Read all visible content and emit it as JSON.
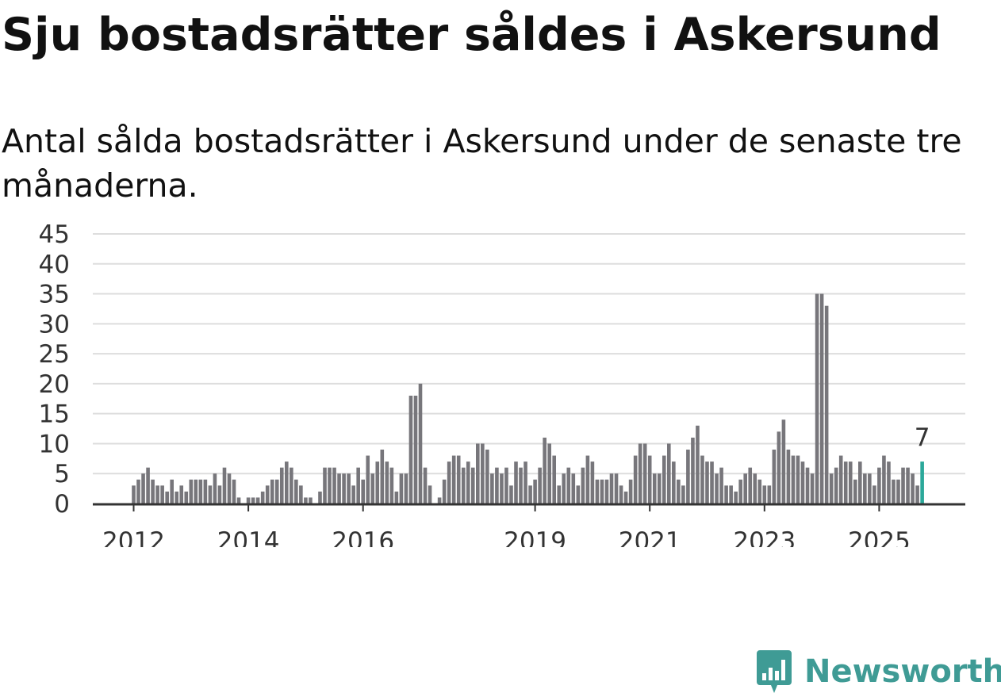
{
  "title": "Sju bostadsrätter såldes i Askersund",
  "subtitle": "Antal sålda bostadsrätter i Askersund under de senaste tre månaderna.",
  "brand": {
    "name": "Newsworthy",
    "color": "#3f9b95"
  },
  "chart_data": {
    "type": "bar",
    "title": "Sju bostadsrätter såldes i Askersund",
    "subtitle": "Antal sålda bostadsrätter i Askersund under de senaste tre månaderna.",
    "xlabel": "",
    "ylabel": "",
    "ylim": [
      0,
      45
    ],
    "yticks": [
      "0",
      "5",
      "10",
      "15",
      "20",
      "25",
      "30",
      "35",
      "40",
      "45"
    ],
    "grid": true,
    "x_tick_labels": [
      "2012",
      "2014",
      "2016",
      "2019",
      "2021",
      "2023",
      "2025"
    ],
    "series_start": "2012-01",
    "series_end": "2025-08",
    "bar_color": "#77767b",
    "highlight_color": "#2ba89a",
    "highlight_label": "7",
    "values": [
      3,
      4,
      5,
      6,
      4,
      3,
      3,
      2,
      4,
      2,
      3,
      2,
      4,
      4,
      4,
      4,
      3,
      5,
      3,
      6,
      5,
      4,
      1,
      0,
      1,
      1,
      1,
      2,
      3,
      4,
      4,
      6,
      7,
      6,
      4,
      3,
      1,
      1,
      0,
      2,
      6,
      6,
      6,
      5,
      5,
      5,
      3,
      6,
      4,
      8,
      5,
      7,
      9,
      7,
      6,
      2,
      5,
      5,
      18,
      18,
      20,
      6,
      3,
      0,
      1,
      4,
      7,
      8,
      8,
      6,
      7,
      6,
      10,
      10,
      9,
      5,
      6,
      5,
      6,
      3,
      7,
      6,
      7,
      3,
      4,
      6,
      11,
      10,
      8,
      3,
      5,
      6,
      5,
      3,
      6,
      8,
      7,
      4,
      4,
      4,
      5,
      5,
      3,
      2,
      4,
      8,
      10,
      10,
      8,
      5,
      5,
      8,
      10,
      7,
      4,
      3,
      9,
      11,
      13,
      8,
      7,
      7,
      5,
      6,
      3,
      3,
      2,
      4,
      5,
      6,
      5,
      4,
      3,
      3,
      9,
      12,
      14,
      9,
      8,
      8,
      7,
      6,
      5,
      35,
      35,
      33,
      5,
      6,
      8,
      7,
      7,
      4,
      7,
      5,
      5,
      3,
      6,
      8,
      7,
      4,
      4,
      6,
      6,
      5,
      3,
      7
    ]
  }
}
